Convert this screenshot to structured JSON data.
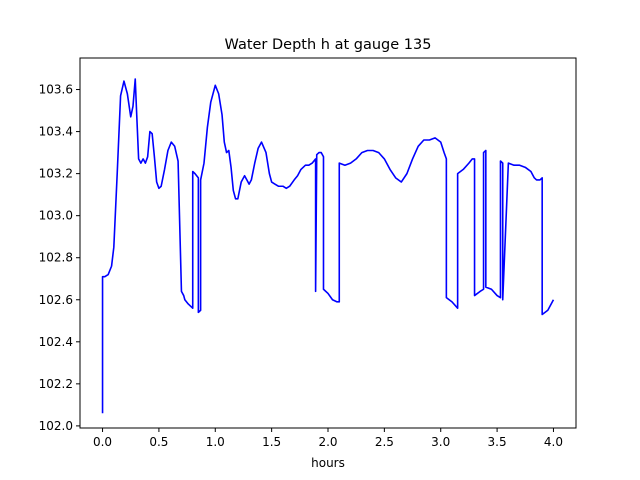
{
  "chart_data": {
    "type": "line",
    "title": "Water Depth h at gauge 135",
    "xlabel": "hours",
    "ylabel": "",
    "xlim": [
      -0.2,
      4.2
    ],
    "ylim": [
      101.99,
      103.75
    ],
    "xticks": [
      0.0,
      0.5,
      1.0,
      1.5,
      2.0,
      2.5,
      3.0,
      3.5,
      4.0
    ],
    "xtick_labels": [
      "0.0",
      "0.5",
      "1.0",
      "1.5",
      "2.0",
      "2.5",
      "3.0",
      "3.5",
      "4.0"
    ],
    "yticks": [
      102.0,
      102.2,
      102.4,
      102.6,
      102.8,
      103.0,
      103.2,
      103.4,
      103.6
    ],
    "ytick_labels": [
      "102.0",
      "102.2",
      "102.4",
      "102.6",
      "102.8",
      "103.0",
      "103.2",
      "103.4",
      "103.6"
    ],
    "grid": false,
    "legend": "none",
    "series": [
      {
        "color": "#0000ff",
        "x": [
          0.0,
          0.0,
          0.02,
          0.05,
          0.08,
          0.1,
          0.13,
          0.16,
          0.19,
          0.22,
          0.25,
          0.27,
          0.29,
          0.3,
          0.32,
          0.34,
          0.36,
          0.38,
          0.4,
          0.42,
          0.44,
          0.46,
          0.48,
          0.5,
          0.52,
          0.55,
          0.58,
          0.61,
          0.64,
          0.67,
          0.7,
          0.72,
          0.73,
          0.73,
          0.76,
          0.8,
          0.8,
          0.82,
          0.85,
          0.85,
          0.87,
          0.87,
          0.9,
          0.93,
          0.96,
          1.0,
          1.03,
          1.06,
          1.08,
          1.1,
          1.12,
          1.14,
          1.16,
          1.18,
          1.2,
          1.23,
          1.26,
          1.28,
          1.3,
          1.32,
          1.35,
          1.38,
          1.41,
          1.45,
          1.48,
          1.5,
          1.53,
          1.56,
          1.6,
          1.63,
          1.66,
          1.7,
          1.73,
          1.76,
          1.8,
          1.83,
          1.86,
          1.89,
          1.89,
          1.9,
          1.92,
          1.94,
          1.96,
          1.96,
          2.0,
          2.04,
          2.08,
          2.1,
          2.1,
          2.15,
          2.2,
          2.25,
          2.3,
          2.35,
          2.4,
          2.45,
          2.5,
          2.55,
          2.6,
          2.65,
          2.7,
          2.75,
          2.8,
          2.85,
          2.9,
          2.95,
          3.0,
          3.03,
          3.05,
          3.05,
          3.1,
          3.15,
          3.15,
          3.2,
          3.25,
          3.28,
          3.3,
          3.3,
          3.35,
          3.38,
          3.38,
          3.4,
          3.4,
          3.45,
          3.5,
          3.53,
          3.53,
          3.55,
          3.55,
          3.6,
          3.65,
          3.7,
          3.75,
          3.8,
          3.83,
          3.85,
          3.88,
          3.9,
          3.9,
          3.95,
          4.0
        ],
        "y": [
          102.06,
          102.71,
          102.71,
          102.72,
          102.76,
          102.85,
          103.2,
          103.57,
          103.64,
          103.58,
          103.47,
          103.52,
          103.65,
          103.52,
          103.27,
          103.25,
          103.27,
          103.25,
          103.28,
          103.4,
          103.39,
          103.28,
          103.16,
          103.13,
          103.14,
          103.22,
          103.31,
          103.35,
          103.33,
          103.26,
          102.64,
          102.62,
          102.6,
          102.6,
          102.58,
          102.56,
          103.21,
          103.2,
          103.18,
          102.54,
          102.55,
          103.17,
          103.25,
          103.42,
          103.54,
          103.62,
          103.58,
          103.48,
          103.35,
          103.3,
          103.31,
          103.23,
          103.12,
          103.08,
          103.08,
          103.16,
          103.19,
          103.17,
          103.15,
          103.17,
          103.25,
          103.32,
          103.35,
          103.3,
          103.2,
          103.16,
          103.15,
          103.14,
          103.14,
          103.13,
          103.14,
          103.17,
          103.19,
          103.22,
          103.24,
          103.24,
          103.25,
          103.27,
          102.64,
          103.29,
          103.3,
          103.3,
          103.28,
          102.65,
          102.63,
          102.6,
          102.59,
          102.59,
          103.25,
          103.24,
          103.25,
          103.27,
          103.3,
          103.31,
          103.31,
          103.3,
          103.27,
          103.22,
          103.18,
          103.16,
          103.2,
          103.27,
          103.33,
          103.36,
          103.36,
          103.37,
          103.35,
          103.3,
          103.27,
          102.61,
          102.59,
          102.56,
          103.2,
          103.22,
          103.25,
          103.27,
          103.27,
          102.62,
          102.64,
          102.65,
          103.3,
          103.31,
          102.66,
          102.65,
          102.62,
          102.61,
          103.26,
          103.25,
          102.6,
          103.25,
          103.24,
          103.24,
          103.23,
          103.21,
          103.18,
          103.17,
          103.17,
          103.18,
          102.53,
          102.55,
          102.6
        ]
      }
    ]
  }
}
